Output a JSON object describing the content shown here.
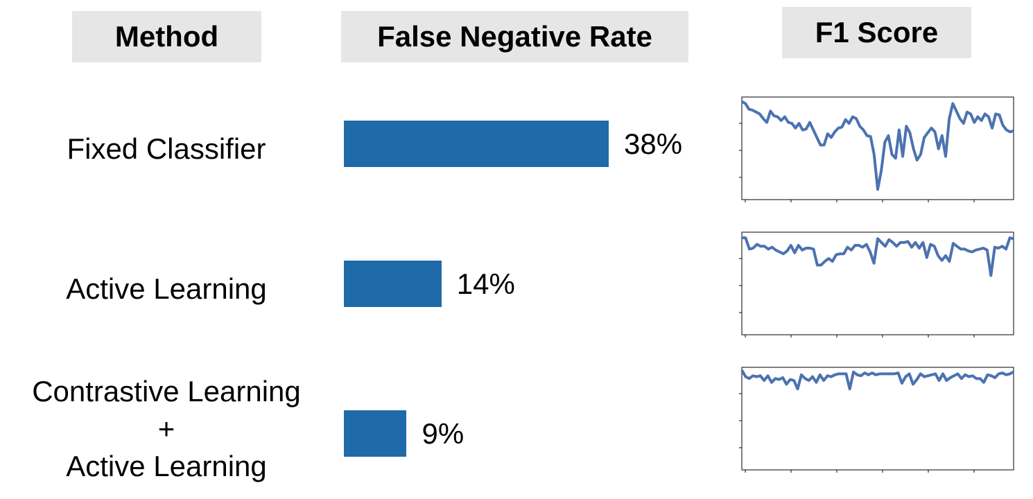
{
  "headers": {
    "method": "Method",
    "fnr": "False Negative Rate",
    "f1": "F1 Score"
  },
  "rows": [
    {
      "method_lines": [
        "Fixed Classifier"
      ],
      "fnr_value": 38,
      "fnr_label": "38%"
    },
    {
      "method_lines": [
        "Active Learning"
      ],
      "fnr_value": 14,
      "fnr_label": "14%"
    },
    {
      "method_lines": [
        "Contrastive Learning",
        "+",
        "Active Learning"
      ],
      "fnr_value": 9,
      "fnr_label": "9%"
    }
  ],
  "colors": {
    "bar": "#1f6aa8",
    "line": "#4c72b0",
    "header_bg": "#e6e6e6"
  },
  "chart_data": [
    {
      "type": "bar",
      "title": "False Negative Rate",
      "categories": [
        "Fixed Classifier",
        "Active Learning",
        "Contrastive Learning + Active Learning"
      ],
      "values": [
        38,
        14,
        9
      ],
      "unit": "%",
      "orientation": "horizontal"
    },
    {
      "type": "line",
      "title": "F1 Score",
      "series": [
        {
          "values": [
            0.98,
            0.96,
            0.9,
            0.89,
            0.87,
            0.85,
            0.8,
            0.76,
            0.88,
            0.83,
            0.82,
            0.78,
            0.82,
            0.76,
            0.75,
            0.7,
            0.75,
            0.68,
            0.69,
            0.76,
            0.68,
            0.6,
            0.52,
            0.52,
            0.64,
            0.6,
            0.66,
            0.7,
            0.71,
            0.79,
            0.75,
            0.82,
            0.8,
            0.72,
            0.68,
            0.62,
            0.61,
            0.42,
            0.05,
            0.25,
            0.55,
            0.62,
            0.42,
            0.38,
            0.68,
            0.4,
            0.72,
            0.65,
            0.48,
            0.36,
            0.42,
            0.6,
            0.65,
            0.7,
            0.66,
            0.48,
            0.62,
            0.4,
            0.8,
            0.96,
            0.88,
            0.8,
            0.75,
            0.87,
            0.85,
            0.76,
            0.82,
            0.78,
            0.85,
            0.82,
            0.7,
            0.85,
            0.84,
            0.73,
            0.68,
            0.66,
            0.67
          ]
        },
        {
          "values": [
            0.97,
            0.97,
            0.85,
            0.86,
            0.9,
            0.88,
            0.88,
            0.85,
            0.87,
            0.84,
            0.82,
            0.8,
            0.83,
            0.89,
            0.81,
            0.89,
            0.84,
            0.86,
            0.86,
            0.85,
            0.68,
            0.68,
            0.72,
            0.75,
            0.72,
            0.79,
            0.8,
            0.8,
            0.87,
            0.84,
            0.89,
            0.89,
            0.87,
            0.9,
            0.82,
            0.7,
            0.96,
            0.92,
            0.88,
            0.95,
            0.92,
            0.88,
            0.92,
            0.92,
            0.93,
            0.87,
            0.92,
            0.86,
            0.92,
            0.76,
            0.9,
            0.88,
            0.78,
            0.73,
            0.78,
            0.72,
            0.91,
            0.88,
            0.85,
            0.85,
            0.83,
            0.82,
            0.84,
            0.85,
            0.86,
            0.84,
            0.57,
            0.87,
            0.86,
            0.88,
            0.85,
            0.97,
            0.96
          ]
        },
        {
          "values": [
            1.0,
            0.93,
            0.91,
            0.94,
            0.93,
            0.94,
            0.89,
            0.94,
            0.87,
            0.91,
            0.9,
            0.92,
            0.85,
            0.9,
            0.89,
            0.8,
            0.95,
            0.91,
            0.89,
            0.93,
            0.87,
            0.95,
            0.89,
            0.94,
            0.93,
            0.95,
            0.96,
            0.96,
            0.96,
            0.8,
            0.98,
            0.95,
            0.94,
            0.97,
            0.95,
            0.97,
            0.95,
            0.96,
            0.96,
            0.96,
            0.96,
            0.96,
            0.97,
            0.86,
            0.93,
            0.96,
            0.85,
            0.9,
            0.96,
            0.93,
            0.94,
            0.95,
            0.96,
            0.89,
            0.96,
            0.89,
            0.92,
            0.94,
            0.96,
            0.91,
            0.95,
            0.93,
            0.94,
            0.91,
            0.91,
            0.87,
            0.95,
            0.94,
            0.92,
            0.96,
            0.97,
            0.95,
            0.96,
            0.98
          ]
        }
      ]
    }
  ]
}
